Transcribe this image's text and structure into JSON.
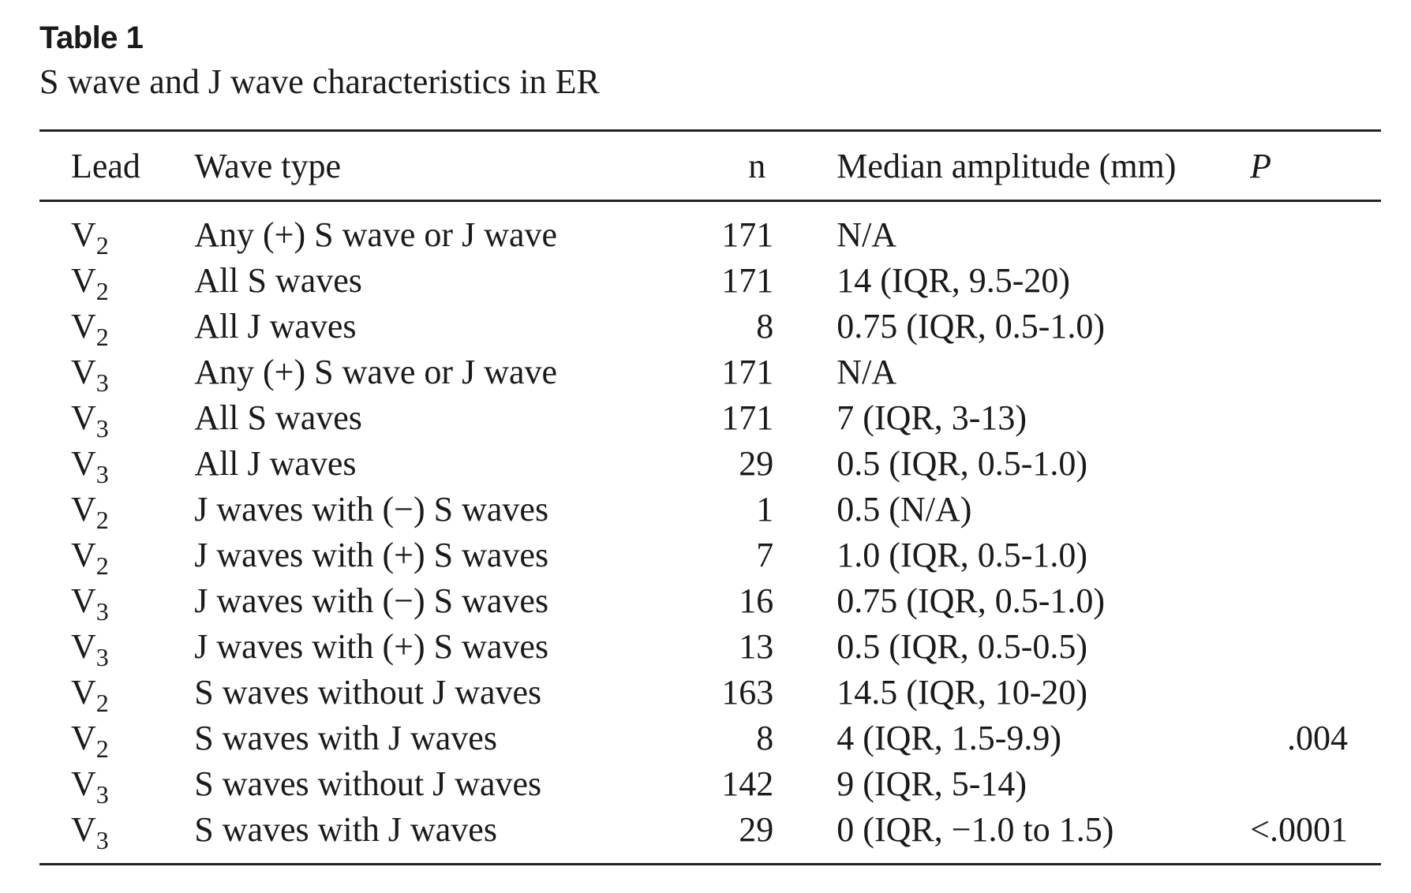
{
  "table_label": "Table 1",
  "caption": "S wave and J wave characteristics in ER",
  "headers": {
    "lead": "Lead",
    "wave_type": "Wave type",
    "n": "n",
    "median_amplitude": "Median amplitude (mm)",
    "p": "P"
  },
  "rows": [
    {
      "lead_base": "V",
      "lead_sub": "2",
      "wave_type": "Any (+) S wave or J wave",
      "n": "171",
      "median_amplitude": "N/A",
      "p": ""
    },
    {
      "lead_base": "V",
      "lead_sub": "2",
      "wave_type": "All S waves",
      "n": "171",
      "median_amplitude": "14 (IQR, 9.5-20)",
      "p": ""
    },
    {
      "lead_base": "V",
      "lead_sub": "2",
      "wave_type": "All J waves",
      "n": "8",
      "median_amplitude": "0.75 (IQR, 0.5-1.0)",
      "p": ""
    },
    {
      "lead_base": "V",
      "lead_sub": "3",
      "wave_type": "Any (+) S wave or J wave",
      "n": "171",
      "median_amplitude": "N/A",
      "p": ""
    },
    {
      "lead_base": "V",
      "lead_sub": "3",
      "wave_type": "All S waves",
      "n": "171",
      "median_amplitude": "7 (IQR, 3-13)",
      "p": ""
    },
    {
      "lead_base": "V",
      "lead_sub": "3",
      "wave_type": "All J waves",
      "n": "29",
      "median_amplitude": "0.5 (IQR, 0.5-1.0)",
      "p": ""
    },
    {
      "lead_base": "V",
      "lead_sub": "2",
      "wave_type": "J waves with (−) S waves",
      "n": "1",
      "median_amplitude": "0.5 (N/A)",
      "p": ""
    },
    {
      "lead_base": "V",
      "lead_sub": "2",
      "wave_type": "J waves with (+) S waves",
      "n": "7",
      "median_amplitude": "1.0 (IQR, 0.5-1.0)",
      "p": ""
    },
    {
      "lead_base": "V",
      "lead_sub": "3",
      "wave_type": "J waves with (−) S waves",
      "n": "16",
      "median_amplitude": "0.75 (IQR, 0.5-1.0)",
      "p": ""
    },
    {
      "lead_base": "V",
      "lead_sub": "3",
      "wave_type": "J waves with (+) S waves",
      "n": "13",
      "median_amplitude": "0.5 (IQR, 0.5-0.5)",
      "p": ""
    },
    {
      "lead_base": "V",
      "lead_sub": "2",
      "wave_type": "S waves without J waves",
      "n": "163",
      "median_amplitude": "14.5 (IQR, 10-20)",
      "p": ""
    },
    {
      "lead_base": "V",
      "lead_sub": "2",
      "wave_type": "S waves with J waves",
      "n": "8",
      "median_amplitude": "4 (IQR, 1.5-9.9)",
      "p": ".004"
    },
    {
      "lead_base": "V",
      "lead_sub": "3",
      "wave_type": "S waves without J waves",
      "n": "142",
      "median_amplitude": "9 (IQR, 5-14)",
      "p": ""
    },
    {
      "lead_base": "V",
      "lead_sub": "3",
      "wave_type": "S waves with J waves",
      "n": "29",
      "median_amplitude": "0 (IQR, −1.0 to 1.5)",
      "p": "<.0001"
    }
  ]
}
